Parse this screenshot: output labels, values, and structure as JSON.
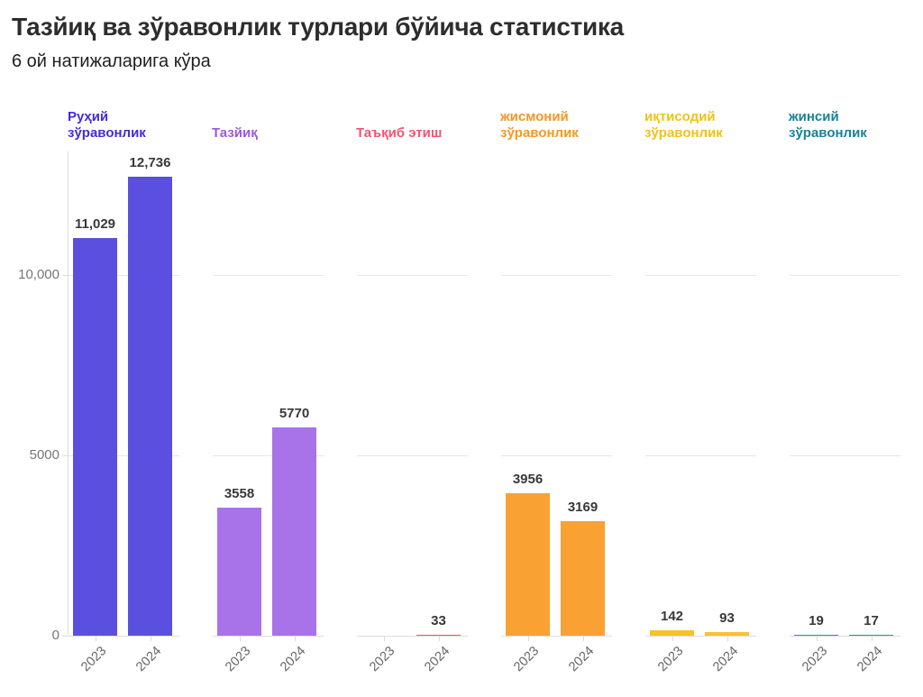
{
  "header": {
    "title": "Тазйиқ ва зўравонлик турлари бўйича статистика",
    "subtitle": "6 ой натижаларига кўра"
  },
  "chart_data": {
    "type": "bar",
    "title": "Тазйиқ ва зўравонлик турлари бўйича статистика",
    "subtitle": "6 ой натижаларига кўра",
    "categories": [
      "2023",
      "2024"
    ],
    "xlabel": "",
    "ylabel": "",
    "ylim": [
      0,
      13000
    ],
    "grid": "horizontal segments per group",
    "legend_position": "none",
    "yticks": [
      {
        "value": 0,
        "label": "0"
      },
      {
        "value": 5000,
        "label": "5000"
      },
      {
        "value": 10000,
        "label": "10,000"
      }
    ],
    "groups": [
      {
        "name": "Руҳий зўравонлик",
        "label_color": "#432bd9",
        "bar_color": "#5b4fe0",
        "values": [
          11029,
          12736
        ],
        "value_labels": [
          "11,029",
          "12,736"
        ]
      },
      {
        "name": "Тазйиқ",
        "label_color": "#9b57e3",
        "bar_color": "#a873e9",
        "values": [
          3558,
          5770
        ],
        "value_labels": [
          "3558",
          "5770"
        ]
      },
      {
        "name": "Таъқиб этиш",
        "label_color": "#f5536e",
        "bar_color": "#f4536e",
        "values": [
          0,
          33
        ],
        "value_labels": [
          "",
          "33"
        ]
      },
      {
        "name": "жисмоний зўравонлик",
        "label_color": "#f8961f",
        "bar_color": "#f9a133",
        "values": [
          3956,
          3169
        ],
        "value_labels": [
          "3956",
          "3169"
        ]
      },
      {
        "name": "иқтисодий зўравонлик",
        "label_color": "#f2c118",
        "bar_color": "#f5c32b",
        "values": [
          142,
          93
        ],
        "value_labels": [
          "142",
          "93"
        ]
      },
      {
        "name": "жинсий зўравонлик",
        "label_color": "#17829b",
        "bar_color": "#2a93a8",
        "values": [
          19,
          17
        ],
        "value_labels": [
          "19",
          "17"
        ]
      }
    ]
  }
}
